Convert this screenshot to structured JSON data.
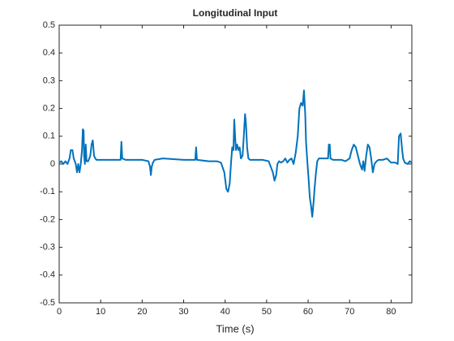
{
  "chart_data": {
    "type": "line",
    "title": "Longitudinal Input",
    "xlabel": "Time (s)",
    "color": "#0072bd",
    "x": [
      0,
      0.5,
      1,
      1.5,
      2,
      2.5,
      2.8,
      3.2,
      3.5,
      4,
      4.3,
      4.6,
      4.9,
      5.2,
      5.5,
      5.7,
      5.9,
      6.0,
      6.2,
      6.4,
      6.6,
      7,
      7.5,
      7.8,
      8.1,
      8.4,
      8.7,
      9,
      12,
      14.8,
      15,
      15.2,
      16,
      20,
      21.5,
      21.9,
      22.1,
      22.3,
      22.6,
      23,
      25,
      30,
      32.8,
      33,
      33.2,
      36,
      38,
      39,
      39.8,
      40.3,
      40.7,
      41.1,
      41.4,
      41.7,
      42,
      42.2,
      42.4,
      42.6,
      42.9,
      43.2,
      43.5,
      43.8,
      44.2,
      44.5,
      44.8,
      45.0,
      45.3,
      45.6,
      46,
      49,
      50.5,
      51,
      51.5,
      51.9,
      52.3,
      52.6,
      53,
      53.5,
      54,
      54.5,
      55,
      55.5,
      56,
      56.5,
      57,
      57.5,
      57.9,
      58.3,
      58.7,
      59.0,
      59.3,
      59.5,
      59.8,
      60.1,
      60.4,
      60.7,
      61,
      61.3,
      61.6,
      61.9,
      62.2,
      62.6,
      63,
      64,
      64.8,
      65,
      65.2,
      65.4,
      66,
      68,
      69,
      70,
      70.5,
      71,
      71.5,
      72,
      72.5,
      73,
      73.3,
      73.6,
      74,
      74.4,
      74.8,
      75.2,
      75.6,
      76,
      76.5,
      77,
      78,
      79,
      80,
      81,
      81.6,
      81.9,
      82.3,
      82.6,
      82.9,
      83.3,
      84,
      84.5,
      85
    ],
    "values": [
      0.005,
      0.01,
      0.0,
      0.01,
      0.0,
      0.02,
      0.05,
      0.05,
      0.02,
      0.0,
      -0.03,
      0.0,
      -0.03,
      0.0,
      0.05,
      0.125,
      0.12,
      0.03,
      0.0,
      0.07,
      0.01,
      0.01,
      0.03,
      0.07,
      0.085,
      0.03,
      0.02,
      0.015,
      0.015,
      0.015,
      0.08,
      0.02,
      0.015,
      0.015,
      0.01,
      -0.01,
      -0.04,
      -0.01,
      0.005,
      0.015,
      0.02,
      0.015,
      0.015,
      0.06,
      0.015,
      0.01,
      0.01,
      0.005,
      -0.03,
      -0.09,
      -0.1,
      -0.07,
      0.0,
      0.06,
      0.05,
      0.16,
      0.1,
      0.05,
      0.07,
      0.05,
      0.06,
      0.02,
      0.03,
      0.1,
      0.18,
      0.15,
      0.06,
      0.02,
      0.015,
      0.015,
      0.01,
      -0.01,
      -0.03,
      -0.06,
      -0.04,
      0.0,
      0.01,
      0.005,
      0.01,
      0.02,
      0.005,
      0.015,
      0.02,
      0.0,
      0.04,
      0.1,
      0.2,
      0.22,
      0.21,
      0.265,
      0.18,
      0.08,
      0.01,
      -0.05,
      -0.12,
      -0.15,
      -0.19,
      -0.14,
      -0.08,
      -0.03,
      0.01,
      0.02,
      0.02,
      0.02,
      0.02,
      0.07,
      0.07,
      0.02,
      0.015,
      0.015,
      0.01,
      0.02,
      0.05,
      0.07,
      0.06,
      0.03,
      0.0,
      -0.02,
      0.01,
      -0.025,
      0.03,
      0.07,
      0.06,
      0.02,
      -0.03,
      0.0,
      0.01,
      0.015,
      0.015,
      0.02,
      0.005,
      0.005,
      0.0,
      0.1,
      0.11,
      0.06,
      0.02,
      0.005,
      0.0,
      0.01,
      0.005
    ],
    "xlim": [
      0,
      85
    ],
    "xticks": [
      0,
      10,
      20,
      30,
      40,
      50,
      60,
      70,
      80
    ],
    "ylim": [
      -0.5,
      0.5
    ],
    "yticks": [
      -0.5,
      -0.4,
      -0.3,
      -0.2,
      -0.1,
      0,
      0.1,
      0.2,
      0.3,
      0.4,
      0.5
    ]
  }
}
